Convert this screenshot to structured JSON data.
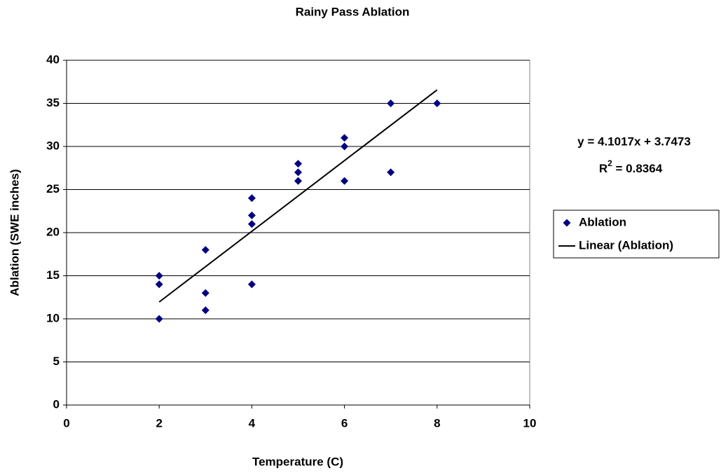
{
  "chart_data": {
    "type": "scatter",
    "title": "Rainy Pass Ablation",
    "x_label": "Temperature (C)",
    "y_label": "Ablation (SWE inches)",
    "xlim": [
      0,
      10
    ],
    "xticks": [
      0,
      2,
      4,
      6,
      8,
      10
    ],
    "ylim": [
      0,
      40
    ],
    "yticks": [
      0,
      5,
      10,
      15,
      20,
      25,
      30,
      35,
      40
    ],
    "grid": true,
    "legend": "right",
    "series": [
      {
        "name": "Ablation",
        "type": "scatter",
        "color": "#000080",
        "x": [
          2,
          2,
          2,
          3,
          3,
          3,
          4,
          4,
          4,
          4,
          5,
          5,
          5,
          6,
          6,
          6,
          7,
          7,
          8
        ],
        "values": [
          10,
          14,
          15,
          11,
          13,
          18,
          14,
          21,
          22,
          24,
          26,
          27,
          28,
          26,
          30,
          31,
          27,
          35,
          35
        ]
      },
      {
        "name": "Linear (Ablation)",
        "type": "line",
        "color": "#000000",
        "x": [
          2,
          8
        ],
        "values": [
          11.9507,
          36.5609
        ]
      }
    ],
    "annotations": [
      "y = 4.1017x + 3.7473",
      [
        "R",
        "2",
        " = 0.8364"
      ]
    ]
  }
}
